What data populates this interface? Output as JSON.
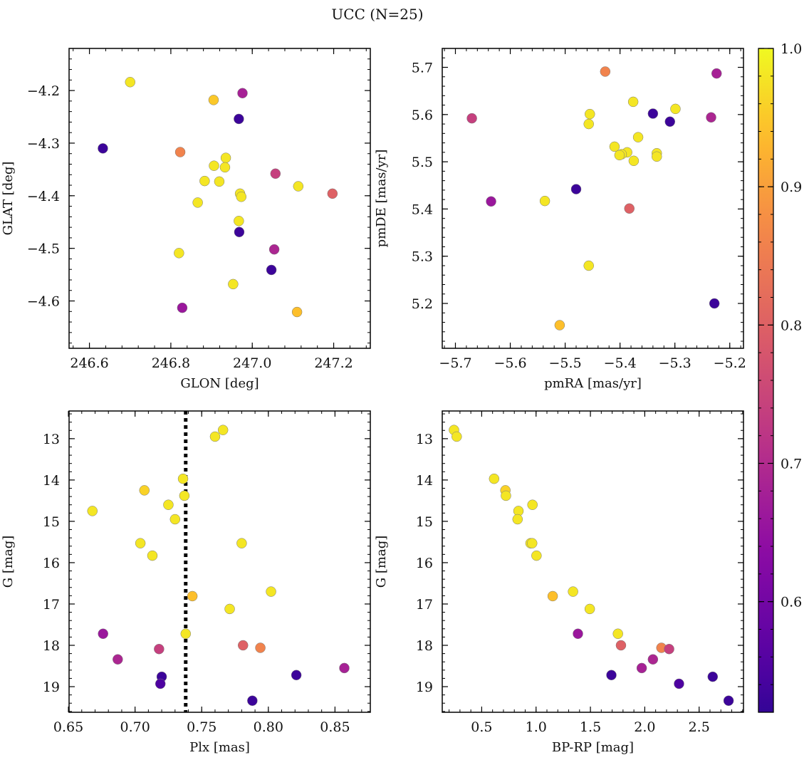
{
  "figure": {
    "suptitle": "UCC (N=25)"
  },
  "colorbar": {
    "vmin": 0.52,
    "vmax": 1.0,
    "ticks": [
      0.6,
      0.7,
      0.8,
      0.9,
      1.0
    ],
    "tick_labels": [
      "0.6",
      "0.7",
      "0.8",
      "0.9",
      "1.0"
    ],
    "colormap": "plasma"
  },
  "chart_data": [
    {
      "type": "scatter",
      "name": "sky-position",
      "xlabel": "GLON [deg]",
      "ylabel": "GLAT [deg]",
      "xlim": [
        246.55,
        247.29
      ],
      "ylim": [
        -4.69,
        -4.12
      ],
      "xticks": [
        246.6,
        246.8,
        247.0,
        247.2
      ],
      "xtick_labels": [
        "246.6",
        "246.8",
        "247.0",
        "247.2"
      ],
      "yticks": [
        -4.6,
        -4.5,
        -4.4,
        -4.3,
        -4.2
      ],
      "ytick_labels": [
        "−4.6",
        "−4.5",
        "−4.4",
        "−4.3",
        "−4.2"
      ],
      "points": [
        {
          "x": 246.7,
          "y": -4.184,
          "c": 0.98
        },
        {
          "x": 246.976,
          "y": -4.205,
          "c": 0.68
        },
        {
          "x": 246.905,
          "y": -4.218,
          "c": 0.95
        },
        {
          "x": 246.967,
          "y": -4.254,
          "c": 0.53
        },
        {
          "x": 246.633,
          "y": -4.31,
          "c": 0.53
        },
        {
          "x": 246.823,
          "y": -4.317,
          "c": 0.86
        },
        {
          "x": 246.935,
          "y": -4.328,
          "c": 0.98
        },
        {
          "x": 246.906,
          "y": -4.343,
          "c": 0.98
        },
        {
          "x": 246.933,
          "y": -4.346,
          "c": 0.98
        },
        {
          "x": 247.057,
          "y": -4.358,
          "c": 0.74
        },
        {
          "x": 246.919,
          "y": -4.373,
          "c": 0.98
        },
        {
          "x": 246.883,
          "y": -4.372,
          "c": 0.98
        },
        {
          "x": 247.113,
          "y": -4.382,
          "c": 0.98
        },
        {
          "x": 246.97,
          "y": -4.396,
          "c": 0.98
        },
        {
          "x": 247.197,
          "y": -4.396,
          "c": 0.8
        },
        {
          "x": 246.973,
          "y": -4.402,
          "c": 0.98
        },
        {
          "x": 246.866,
          "y": -4.413,
          "c": 0.98
        },
        {
          "x": 246.967,
          "y": -4.448,
          "c": 0.98
        },
        {
          "x": 246.968,
          "y": -4.469,
          "c": 0.53
        },
        {
          "x": 247.054,
          "y": -4.502,
          "c": 0.69
        },
        {
          "x": 246.82,
          "y": -4.509,
          "c": 0.98
        },
        {
          "x": 247.047,
          "y": -4.541,
          "c": 0.53
        },
        {
          "x": 246.953,
          "y": -4.568,
          "c": 0.98
        },
        {
          "x": 246.828,
          "y": -4.613,
          "c": 0.66
        },
        {
          "x": 247.11,
          "y": -4.621,
          "c": 0.94
        }
      ]
    },
    {
      "type": "scatter",
      "name": "proper-motion",
      "xlabel": "pmRA [mas/yr]",
      "ylabel": "pmDE [mas/yr]",
      "xlim": [
        -5.724,
        -5.175
      ],
      "ylim": [
        5.105,
        5.74
      ],
      "xticks": [
        -5.7,
        -5.6,
        -5.5,
        -5.4,
        -5.3,
        -5.2
      ],
      "xtick_labels": [
        "−5.7",
        "−5.6",
        "−5.5",
        "−5.4",
        "−5.3",
        "−5.2"
      ],
      "yticks": [
        5.2,
        5.3,
        5.4,
        5.5,
        5.6,
        5.7
      ],
      "ytick_labels": [
        "5.2",
        "5.3",
        "5.4",
        "5.5",
        "5.6",
        "5.7"
      ],
      "points": [
        {
          "x": -5.427,
          "y": 5.691,
          "c": 0.86
        },
        {
          "x": -5.224,
          "y": 5.687,
          "c": 0.68
        },
        {
          "x": -5.376,
          "y": 5.627,
          "c": 0.98
        },
        {
          "x": -5.299,
          "y": 5.612,
          "c": 0.98
        },
        {
          "x": -5.34,
          "y": 5.602,
          "c": 0.53
        },
        {
          "x": -5.455,
          "y": 5.601,
          "c": 0.98
        },
        {
          "x": -5.67,
          "y": 5.592,
          "c": 0.74
        },
        {
          "x": -5.234,
          "y": 5.594,
          "c": 0.69
        },
        {
          "x": -5.309,
          "y": 5.585,
          "c": 0.53
        },
        {
          "x": -5.457,
          "y": 5.58,
          "c": 0.98
        },
        {
          "x": -5.367,
          "y": 5.552,
          "c": 0.98
        },
        {
          "x": -5.41,
          "y": 5.532,
          "c": 0.98
        },
        {
          "x": -5.387,
          "y": 5.52,
          "c": 0.98
        },
        {
          "x": -5.333,
          "y": 5.518,
          "c": 0.98
        },
        {
          "x": -5.397,
          "y": 5.516,
          "c": 0.98
        },
        {
          "x": -5.401,
          "y": 5.514,
          "c": 0.98
        },
        {
          "x": -5.333,
          "y": 5.511,
          "c": 0.98
        },
        {
          "x": -5.375,
          "y": 5.502,
          "c": 0.98
        },
        {
          "x": -5.48,
          "y": 5.442,
          "c": 0.53
        },
        {
          "x": -5.537,
          "y": 5.417,
          "c": 0.98
        },
        {
          "x": -5.635,
          "y": 5.416,
          "c": 0.66
        },
        {
          "x": -5.383,
          "y": 5.401,
          "c": 0.8
        },
        {
          "x": -5.457,
          "y": 5.28,
          "c": 0.98
        },
        {
          "x": -5.228,
          "y": 5.2,
          "c": 0.53
        },
        {
          "x": -5.51,
          "y": 5.154,
          "c": 0.94
        }
      ]
    },
    {
      "type": "scatter",
      "name": "parallax-magnitude",
      "xlabel": "Plx [mas]",
      "ylabel": "G [mag]",
      "xlim": [
        0.6505,
        0.8765
      ],
      "ylim": [
        19.62,
        12.33
      ],
      "y_inverted": true,
      "xticks": [
        0.65,
        0.7,
        0.75,
        0.8,
        0.85
      ],
      "xtick_labels": [
        "0.65",
        "0.70",
        "0.75",
        "0.80",
        "0.85"
      ],
      "yticks": [
        13,
        14,
        15,
        16,
        17,
        18,
        19
      ],
      "ytick_labels": [
        "13",
        "14",
        "15",
        "16",
        "17",
        "18",
        "19"
      ],
      "vline": {
        "x": 0.738,
        "style": "dotted"
      },
      "points": [
        {
          "x": 0.766,
          "y": 12.79,
          "c": 0.98
        },
        {
          "x": 0.76,
          "y": 12.95,
          "c": 0.98
        },
        {
          "x": 0.736,
          "y": 13.97,
          "c": 0.98
        },
        {
          "x": 0.707,
          "y": 14.25,
          "c": 0.96
        },
        {
          "x": 0.737,
          "y": 14.38,
          "c": 0.98
        },
        {
          "x": 0.725,
          "y": 14.6,
          "c": 0.98
        },
        {
          "x": 0.668,
          "y": 14.75,
          "c": 0.98
        },
        {
          "x": 0.73,
          "y": 14.95,
          "c": 0.98
        },
        {
          "x": 0.704,
          "y": 15.53,
          "c": 0.98
        },
        {
          "x": 0.78,
          "y": 15.53,
          "c": 0.98
        },
        {
          "x": 0.713,
          "y": 15.83,
          "c": 0.98
        },
        {
          "x": 0.802,
          "y": 16.7,
          "c": 0.98
        },
        {
          "x": 0.743,
          "y": 16.81,
          "c": 0.94
        },
        {
          "x": 0.771,
          "y": 17.12,
          "c": 0.98
        },
        {
          "x": 0.676,
          "y": 17.72,
          "c": 0.66
        },
        {
          "x": 0.738,
          "y": 17.72,
          "c": 0.98
        },
        {
          "x": 0.781,
          "y": 18.0,
          "c": 0.8
        },
        {
          "x": 0.794,
          "y": 18.06,
          "c": 0.86
        },
        {
          "x": 0.718,
          "y": 18.09,
          "c": 0.74
        },
        {
          "x": 0.687,
          "y": 18.34,
          "c": 0.69
        },
        {
          "x": 0.857,
          "y": 18.55,
          "c": 0.68
        },
        {
          "x": 0.821,
          "y": 18.72,
          "c": 0.53
        },
        {
          "x": 0.72,
          "y": 18.76,
          "c": 0.53
        },
        {
          "x": 0.719,
          "y": 18.93,
          "c": 0.55
        },
        {
          "x": 0.788,
          "y": 19.34,
          "c": 0.53
        }
      ]
    },
    {
      "type": "scatter",
      "name": "color-magnitude",
      "xlabel": "BP-RP [mag]",
      "ylabel": "G [mag]",
      "xlim": [
        0.137,
        2.908
      ],
      "ylim": [
        19.62,
        12.33
      ],
      "y_inverted": true,
      "xticks": [
        0.5,
        1.0,
        1.5,
        2.0,
        2.5
      ],
      "xtick_labels": [
        "0.5",
        "1.0",
        "1.5",
        "2.0",
        "2.5"
      ],
      "yticks": [
        13,
        14,
        15,
        16,
        17,
        18,
        19
      ],
      "ytick_labels": [
        "13",
        "14",
        "15",
        "16",
        "17",
        "18",
        "19"
      ],
      "points": [
        {
          "x": 0.245,
          "y": 12.79,
          "c": 0.98
        },
        {
          "x": 0.27,
          "y": 12.95,
          "c": 0.98
        },
        {
          "x": 0.614,
          "y": 13.97,
          "c": 0.98
        },
        {
          "x": 0.718,
          "y": 14.25,
          "c": 0.96
        },
        {
          "x": 0.723,
          "y": 14.38,
          "c": 0.98
        },
        {
          "x": 0.967,
          "y": 14.6,
          "c": 0.98
        },
        {
          "x": 0.838,
          "y": 14.75,
          "c": 0.98
        },
        {
          "x": 0.83,
          "y": 14.95,
          "c": 0.98
        },
        {
          "x": 0.949,
          "y": 15.53,
          "c": 0.98
        },
        {
          "x": 0.964,
          "y": 15.53,
          "c": 0.98
        },
        {
          "x": 1.004,
          "y": 15.83,
          "c": 0.98
        },
        {
          "x": 1.34,
          "y": 16.7,
          "c": 0.98
        },
        {
          "x": 1.153,
          "y": 16.81,
          "c": 0.94
        },
        {
          "x": 1.494,
          "y": 17.12,
          "c": 0.98
        },
        {
          "x": 1.385,
          "y": 17.72,
          "c": 0.66
        },
        {
          "x": 1.753,
          "y": 17.72,
          "c": 0.98
        },
        {
          "x": 1.781,
          "y": 18.0,
          "c": 0.8
        },
        {
          "x": 2.153,
          "y": 18.06,
          "c": 0.86
        },
        {
          "x": 2.224,
          "y": 18.09,
          "c": 0.74
        },
        {
          "x": 2.075,
          "y": 18.34,
          "c": 0.69
        },
        {
          "x": 1.972,
          "y": 18.55,
          "c": 0.68
        },
        {
          "x": 1.693,
          "y": 18.72,
          "c": 0.53
        },
        {
          "x": 2.625,
          "y": 18.76,
          "c": 0.53
        },
        {
          "x": 2.315,
          "y": 18.93,
          "c": 0.55
        },
        {
          "x": 2.771,
          "y": 19.34,
          "c": 0.53
        }
      ]
    }
  ]
}
